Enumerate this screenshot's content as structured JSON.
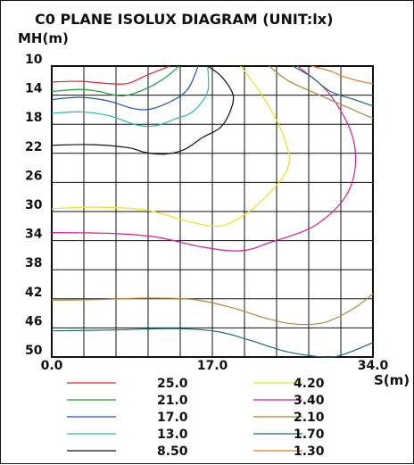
{
  "chart_data": {
    "type": "line",
    "title": "C0 PLANE ISOLUX DIAGRAM (UNIT:lx)",
    "ylabel": "MH(m)",
    "xlabel": "S(m)",
    "xlim": [
      0,
      34
    ],
    "ylim": [
      10,
      50
    ],
    "y_inverted": true,
    "grid": true,
    "x_ticks": [
      "0.0",
      "17.0",
      "34.0"
    ],
    "y_ticks": [
      "10",
      "14",
      "18",
      "22",
      "26",
      "30",
      "34",
      "38",
      "42",
      "46",
      "50"
    ],
    "legend_placement": "bottom",
    "series": [
      {
        "name": "25.0",
        "color": "#e8202a",
        "points": [
          [
            0,
            12.2
          ],
          [
            3,
            12.1
          ],
          [
            6,
            12.4
          ],
          [
            8,
            12.4
          ],
          [
            10,
            11.3
          ],
          [
            12.5,
            10
          ]
        ]
      },
      {
        "name": "21.0",
        "color": "#1e9e38",
        "points": [
          [
            0,
            13.5
          ],
          [
            3,
            13.2
          ],
          [
            5,
            13.5
          ],
          [
            7.5,
            14.1
          ],
          [
            10,
            13.1
          ],
          [
            12,
            11.6
          ],
          [
            13.5,
            10
          ]
        ]
      },
      {
        "name": "17.0",
        "color": "#2056b0",
        "points": [
          [
            0,
            14.6
          ],
          [
            3,
            14.3
          ],
          [
            6,
            14.8
          ],
          [
            8.5,
            15.8
          ],
          [
            10.5,
            15.9
          ],
          [
            13,
            14.6
          ],
          [
            14.5,
            13
          ],
          [
            15.5,
            10
          ]
        ]
      },
      {
        "name": "13.0",
        "color": "#2ab8b0",
        "points": [
          [
            0,
            16.5
          ],
          [
            3,
            16.3
          ],
          [
            6,
            16.8
          ],
          [
            9,
            18.1
          ],
          [
            11,
            18.2
          ],
          [
            13,
            17.3
          ],
          [
            15,
            16.2
          ],
          [
            16.5,
            13.5
          ],
          [
            16.5,
            10
          ]
        ]
      },
      {
        "name": "8.50",
        "color": "#111111",
        "points": [
          [
            0,
            20.9
          ],
          [
            4,
            20.8
          ],
          [
            8,
            21.2
          ],
          [
            10,
            21.9
          ],
          [
            12,
            22.1
          ],
          [
            14,
            21.5
          ],
          [
            16,
            19.8
          ],
          [
            17.8,
            18.5
          ],
          [
            18.8,
            16.5
          ],
          [
            19.2,
            14
          ],
          [
            18,
            11.5
          ],
          [
            16.5,
            10
          ]
        ]
      },
      {
        "name": "4.20",
        "color": "#f0e020",
        "points": [
          [
            0,
            29.6
          ],
          [
            5,
            29.4
          ],
          [
            10,
            29.8
          ],
          [
            14,
            31.2
          ],
          [
            17,
            32
          ],
          [
            19,
            31.5
          ],
          [
            22,
            28.8
          ],
          [
            25,
            24
          ],
          [
            24.5,
            19.5
          ],
          [
            22.5,
            14.5
          ],
          [
            20,
            10
          ]
        ]
      },
      {
        "name": "3.40",
        "color": "#d81c9c",
        "points": [
          [
            0,
            32.9
          ],
          [
            6,
            33
          ],
          [
            11,
            33.5
          ],
          [
            16,
            34.9
          ],
          [
            20,
            35.4
          ],
          [
            23,
            34.3
          ],
          [
            28,
            31.8
          ],
          [
            31.5,
            27
          ],
          [
            32,
            20.5
          ],
          [
            29.5,
            14
          ],
          [
            26,
            10
          ]
        ]
      },
      {
        "name": "2.10",
        "color": "#b0883a",
        "points": [
          [
            0,
            42.2
          ],
          [
            5,
            42.1
          ],
          [
            10,
            41.9
          ],
          [
            15,
            42.1
          ],
          [
            19,
            43.2
          ],
          [
            23,
            44.8
          ],
          [
            26,
            45.5
          ],
          [
            29,
            45.2
          ],
          [
            32,
            43.3
          ],
          [
            34,
            41.3
          ]
        ]
      },
      {
        "name": "1.70",
        "color": "#1a6c78",
        "points": [
          [
            0,
            46.4
          ],
          [
            6,
            46.3
          ],
          [
            13,
            46.1
          ],
          [
            17.5,
            46.5
          ],
          [
            21,
            47.7
          ],
          [
            25,
            49.3
          ],
          [
            29,
            50
          ],
          [
            31,
            49.6
          ],
          [
            34,
            48
          ]
        ]
      },
      {
        "name": "1.30",
        "color": "#e07a28",
        "points": [
          [
            27.5,
            10
          ],
          [
            29.5,
            10.7
          ],
          [
            31,
            11.5
          ],
          [
            33,
            12.2
          ],
          [
            34,
            12.4
          ]
        ]
      },
      {
        "name": "",
        "color": "#1a6c78",
        "points": [
          [
            25.5,
            10
          ],
          [
            27.5,
            11.5
          ],
          [
            29.5,
            13.5
          ],
          [
            32,
            14.6
          ],
          [
            34,
            15.5
          ]
        ]
      },
      {
        "name": "",
        "color": "#b0883a",
        "points": [
          [
            23,
            10
          ],
          [
            25,
            12
          ],
          [
            28,
            13.8
          ],
          [
            31,
            15.5
          ],
          [
            34,
            17.2
          ]
        ]
      }
    ]
  }
}
